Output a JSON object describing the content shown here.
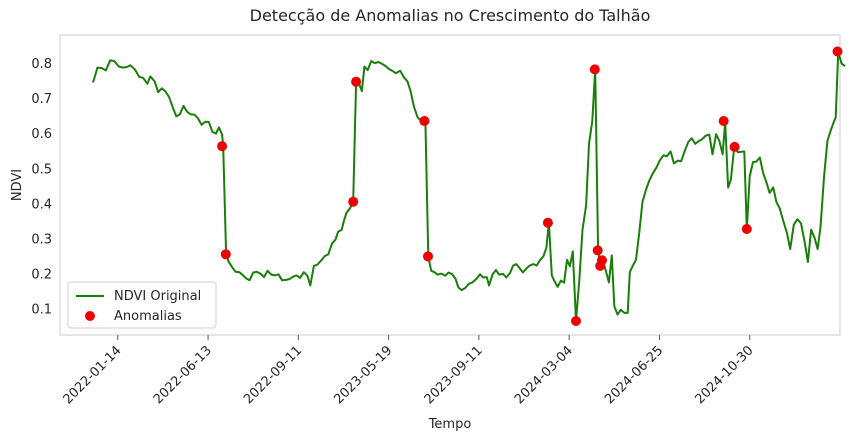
{
  "chart_data": {
    "type": "line",
    "title": "Detecção de Anomalias no Crescimento do Talhão",
    "xlabel": "Tempo",
    "ylabel": "NDVI",
    "ylim": [
      0.025,
      0.88
    ],
    "xlim": [
      -6,
      210
    ],
    "grid": false,
    "legend_position": "lower-left",
    "x_ticks": [
      {
        "pos": 10,
        "label": "2022-01-14"
      },
      {
        "pos": 35,
        "label": "2022-06-13"
      },
      {
        "pos": 60,
        "label": "2022-09-11"
      },
      {
        "pos": 85,
        "label": "2023-05-19"
      },
      {
        "pos": 110,
        "label": "2023-09-11"
      },
      {
        "pos": 135,
        "label": "2024-03-04"
      },
      {
        "pos": 160,
        "label": "2024-06-25"
      },
      {
        "pos": 185,
        "label": "2024-10-30"
      }
    ],
    "y_ticks": [
      0.1,
      0.2,
      0.3,
      0.4,
      0.5,
      0.6,
      0.7,
      0.8
    ],
    "series": [
      {
        "name": "NDVI Original",
        "kind": "line",
        "color": "#1a7f0a",
        "points": [
          [
            3.15,
            0.745
          ],
          [
            3.6,
            0.76
          ],
          [
            4.35,
            0.787
          ],
          [
            5.5,
            0.786
          ],
          [
            6.7,
            0.779
          ],
          [
            7.9,
            0.808
          ],
          [
            9.0,
            0.806
          ],
          [
            10.3,
            0.79
          ],
          [
            11.5,
            0.787
          ],
          [
            12.6,
            0.789
          ],
          [
            13.5,
            0.794
          ],
          [
            14.8,
            0.781
          ],
          [
            15.9,
            0.761
          ],
          [
            17.0,
            0.758
          ],
          [
            18.2,
            0.741
          ],
          [
            19.0,
            0.762
          ],
          [
            20.2,
            0.748
          ],
          [
            21.2,
            0.717
          ],
          [
            22.2,
            0.728
          ],
          [
            23.2,
            0.719
          ],
          [
            24.2,
            0.703
          ],
          [
            25.2,
            0.674
          ],
          [
            26.2,
            0.648
          ],
          [
            27.2,
            0.654
          ],
          [
            28.2,
            0.678
          ],
          [
            29.2,
            0.661
          ],
          [
            30.2,
            0.654
          ],
          [
            31.2,
            0.653
          ],
          [
            32.2,
            0.643
          ],
          [
            33.2,
            0.624
          ],
          [
            34.2,
            0.633
          ],
          [
            35.2,
            0.632
          ],
          [
            36.2,
            0.604
          ],
          [
            37.2,
            0.599
          ],
          [
            38.0,
            0.617
          ],
          [
            38.9,
            0.596
          ],
          [
            39.2,
            0.562
          ],
          [
            40.0,
            0.256
          ],
          [
            40.7,
            0.234
          ],
          [
            41.7,
            0.218
          ],
          [
            42.6,
            0.205
          ],
          [
            43.7,
            0.204
          ],
          [
            44.7,
            0.195
          ],
          [
            45.6,
            0.186
          ],
          [
            46.5,
            0.181
          ],
          [
            47.5,
            0.203
          ],
          [
            48.5,
            0.205
          ],
          [
            49.5,
            0.2
          ],
          [
            50.5,
            0.19
          ],
          [
            51.5,
            0.208
          ],
          [
            52.5,
            0.197
          ],
          [
            53.5,
            0.195
          ],
          [
            54.5,
            0.198
          ],
          [
            55.5,
            0.181
          ],
          [
            56.5,
            0.182
          ],
          [
            57.5,
            0.184
          ],
          [
            58.5,
            0.191
          ],
          [
            59.5,
            0.195
          ],
          [
            60.5,
            0.188
          ],
          [
            61.5,
            0.204
          ],
          [
            62.5,
            0.194
          ],
          [
            63.3,
            0.166
          ],
          [
            64.3,
            0.222
          ],
          [
            65.3,
            0.226
          ],
          [
            66.3,
            0.237
          ],
          [
            67.3,
            0.25
          ],
          [
            68.3,
            0.255
          ],
          [
            69.3,
            0.285
          ],
          [
            70.3,
            0.297
          ],
          [
            71.0,
            0.319
          ],
          [
            72.0,
            0.325
          ],
          [
            72.6,
            0.349
          ],
          [
            73.3,
            0.373
          ],
          [
            74.3,
            0.386
          ],
          [
            75.2,
            0.406
          ],
          [
            76.0,
            0.746
          ],
          [
            76.8,
            0.742
          ],
          [
            77.6,
            0.72
          ],
          [
            78.3,
            0.79
          ],
          [
            79.2,
            0.78
          ],
          [
            80.2,
            0.806
          ],
          [
            81.1,
            0.8
          ],
          [
            82.2,
            0.803
          ],
          [
            83.1,
            0.798
          ],
          [
            84.1,
            0.792
          ],
          [
            85.0,
            0.784
          ],
          [
            86.0,
            0.778
          ],
          [
            87.0,
            0.771
          ],
          [
            88.2,
            0.778
          ],
          [
            89.2,
            0.76
          ],
          [
            90.2,
            0.748
          ],
          [
            91.1,
            0.72
          ],
          [
            92.0,
            0.676
          ],
          [
            93.0,
            0.646
          ],
          [
            94.0,
            0.635
          ],
          [
            94.8,
            0.637
          ],
          [
            95.2,
            0.633
          ],
          [
            96.0,
            0.248
          ],
          [
            96.8,
            0.208
          ],
          [
            97.7,
            0.204
          ],
          [
            98.5,
            0.197
          ],
          [
            99.6,
            0.2
          ],
          [
            100.7,
            0.194
          ],
          [
            101.6,
            0.203
          ],
          [
            102.5,
            0.199
          ],
          [
            103.5,
            0.186
          ],
          [
            104.3,
            0.161
          ],
          [
            105.2,
            0.153
          ],
          [
            106.2,
            0.159
          ],
          [
            107.2,
            0.171
          ],
          [
            108.2,
            0.175
          ],
          [
            109.3,
            0.185
          ],
          [
            110.3,
            0.198
          ],
          [
            111.2,
            0.189
          ],
          [
            112.2,
            0.19
          ],
          [
            112.8,
            0.166
          ],
          [
            113.8,
            0.198
          ],
          [
            114.7,
            0.21
          ],
          [
            115.6,
            0.197
          ],
          [
            116.7,
            0.199
          ],
          [
            117.6,
            0.189
          ],
          [
            118.6,
            0.201
          ],
          [
            119.5,
            0.223
          ],
          [
            120.4,
            0.227
          ],
          [
            121.3,
            0.215
          ],
          [
            122.2,
            0.203
          ],
          [
            123.2,
            0.215
          ],
          [
            124.1,
            0.223
          ],
          [
            125.1,
            0.227
          ],
          [
            126.0,
            0.223
          ],
          [
            126.9,
            0.238
          ],
          [
            127.9,
            0.25
          ],
          [
            128.7,
            0.274
          ],
          [
            129.4,
            0.346
          ],
          [
            130.2,
            0.195
          ],
          [
            130.9,
            0.179
          ],
          [
            131.8,
            0.162
          ],
          [
            132.7,
            0.18
          ],
          [
            133.6,
            0.174
          ],
          [
            134.4,
            0.239
          ],
          [
            135.2,
            0.221
          ],
          [
            136.0,
            0.263
          ],
          [
            136.9,
            0.065
          ],
          [
            137.8,
            0.181
          ],
          [
            138.7,
            0.325
          ],
          [
            139.7,
            0.394
          ],
          [
            140.5,
            0.57
          ],
          [
            141.4,
            0.635
          ],
          [
            142.2,
            0.782
          ],
          [
            143.0,
            0.266
          ],
          [
            143.6,
            0.222
          ],
          [
            144.3,
            0.238
          ],
          [
            145.2,
            0.206
          ],
          [
            146.0,
            0.175
          ],
          [
            146.8,
            0.252
          ],
          [
            147.5,
            0.107
          ],
          [
            148.4,
            0.083
          ],
          [
            149.3,
            0.097
          ],
          [
            150.3,
            0.088
          ],
          [
            151.2,
            0.088
          ],
          [
            151.8,
            0.204
          ],
          [
            152.6,
            0.222
          ],
          [
            153.5,
            0.24
          ],
          [
            154.4,
            0.315
          ],
          [
            155.3,
            0.405
          ],
          [
            156.3,
            0.44
          ],
          [
            157.2,
            0.465
          ],
          [
            158.2,
            0.486
          ],
          [
            159.2,
            0.503
          ],
          [
            160.1,
            0.523
          ],
          [
            161.1,
            0.537
          ],
          [
            162.1,
            0.535
          ],
          [
            163.1,
            0.548
          ],
          [
            164.0,
            0.514
          ],
          [
            165.1,
            0.522
          ],
          [
            166.0,
            0.52
          ],
          [
            167.0,
            0.549
          ],
          [
            168.0,
            0.575
          ],
          [
            168.9,
            0.586
          ],
          [
            169.9,
            0.57
          ],
          [
            170.9,
            0.578
          ],
          [
            171.8,
            0.583
          ],
          [
            172.8,
            0.593
          ],
          [
            173.8,
            0.596
          ],
          [
            174.7,
            0.54
          ],
          [
            175.7,
            0.597
          ],
          [
            176.6,
            0.578
          ],
          [
            177.5,
            0.54
          ],
          [
            178.2,
            0.633
          ],
          [
            179.0,
            0.445
          ],
          [
            179.8,
            0.468
          ],
          [
            180.7,
            0.561
          ],
          [
            181.7,
            0.546
          ],
          [
            182.7,
            0.547
          ],
          [
            183.5,
            0.548
          ],
          [
            184.2,
            0.325
          ],
          [
            185.0,
            0.477
          ],
          [
            185.9,
            0.518
          ],
          [
            186.8,
            0.519
          ],
          [
            187.8,
            0.531
          ],
          [
            188.7,
            0.487
          ],
          [
            189.7,
            0.458
          ],
          [
            190.5,
            0.43
          ],
          [
            191.5,
            0.446
          ],
          [
            192.4,
            0.404
          ],
          [
            193.3,
            0.386
          ],
          [
            194.3,
            0.35
          ],
          [
            195.3,
            0.316
          ],
          [
            196.2,
            0.27
          ],
          [
            197.2,
            0.339
          ],
          [
            198.2,
            0.355
          ],
          [
            199.2,
            0.343
          ],
          [
            200.2,
            0.291
          ],
          [
            201.1,
            0.233
          ],
          [
            202.0,
            0.325
          ],
          [
            203.0,
            0.301
          ],
          [
            203.8,
            0.27
          ],
          [
            204.6,
            0.332
          ],
          [
            205.6,
            0.478
          ],
          [
            206.5,
            0.578
          ],
          [
            207.4,
            0.607
          ],
          [
            208.3,
            0.633
          ],
          [
            208.8,
            0.645
          ],
          [
            209.5,
            0.83
          ],
          [
            210.5,
            0.798
          ],
          [
            211.4,
            0.791
          ]
        ]
      },
      {
        "name": "Anomalias",
        "kind": "scatter",
        "color": "#ee0000",
        "points": [
          [
            38.9,
            0.563
          ],
          [
            39.9,
            0.255
          ],
          [
            75.2,
            0.405
          ],
          [
            76.0,
            0.747
          ],
          [
            94.9,
            0.635
          ],
          [
            95.9,
            0.249
          ],
          [
            129.1,
            0.345
          ],
          [
            136.9,
            0.065
          ],
          [
            142.1,
            0.782
          ],
          [
            142.9,
            0.266
          ],
          [
            143.6,
            0.222
          ],
          [
            144.1,
            0.238
          ],
          [
            177.8,
            0.635
          ],
          [
            180.8,
            0.561
          ],
          [
            184.2,
            0.327
          ],
          [
            209.3,
            0.833
          ]
        ]
      }
    ]
  }
}
